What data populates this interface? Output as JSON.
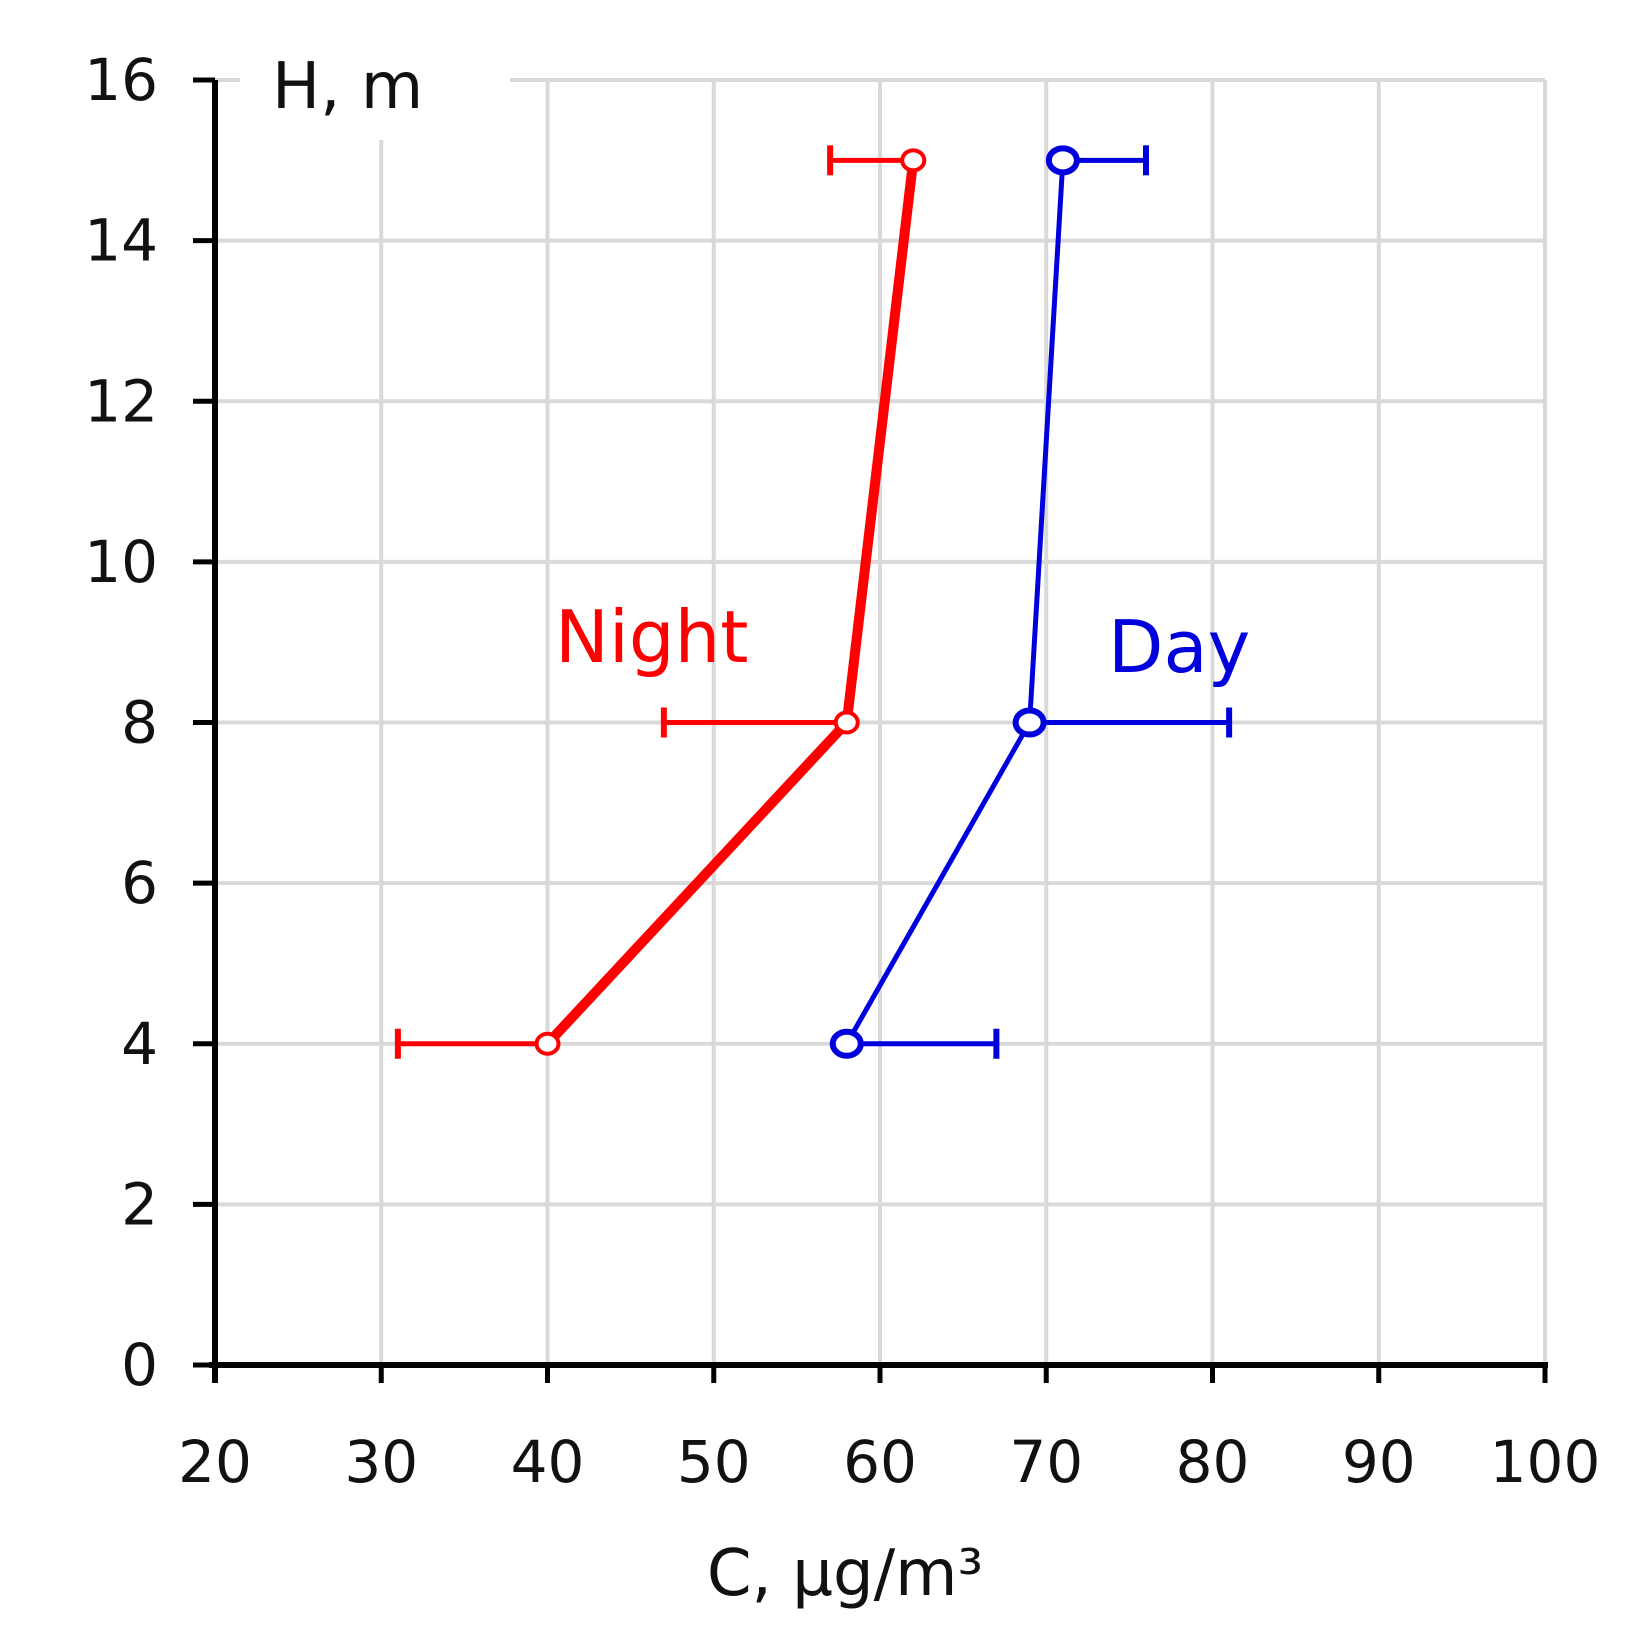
{
  "chart_data": {
    "type": "line",
    "title": "",
    "xlabel": "C, μg/m³",
    "ylabel": "H, m",
    "xlim": [
      20,
      100
    ],
    "ylim": [
      0,
      16
    ],
    "xticks": [
      "20",
      "30",
      "40",
      "50",
      "60",
      "70",
      "80",
      "90",
      "100"
    ],
    "yticks": [
      "0",
      "2",
      "4",
      "6",
      "8",
      "10",
      "12",
      "14",
      "16"
    ],
    "grid": true,
    "series": [
      {
        "name": "Night",
        "color": "#ff0000",
        "points": [
          {
            "x": 40,
            "y": 4,
            "xerr_low": 31
          },
          {
            "x": 58,
            "y": 8,
            "xerr_low": 47
          },
          {
            "x": 62,
            "y": 15,
            "xerr_low": 57
          }
        ]
      },
      {
        "name": "Day",
        "color": "#0000dd",
        "points": [
          {
            "x": 58,
            "y": 4,
            "xerr_high": 67
          },
          {
            "x": 69,
            "y": 8,
            "xerr_high": 81
          },
          {
            "x": 71,
            "y": 15,
            "xerr_high": 76
          }
        ]
      }
    ]
  }
}
